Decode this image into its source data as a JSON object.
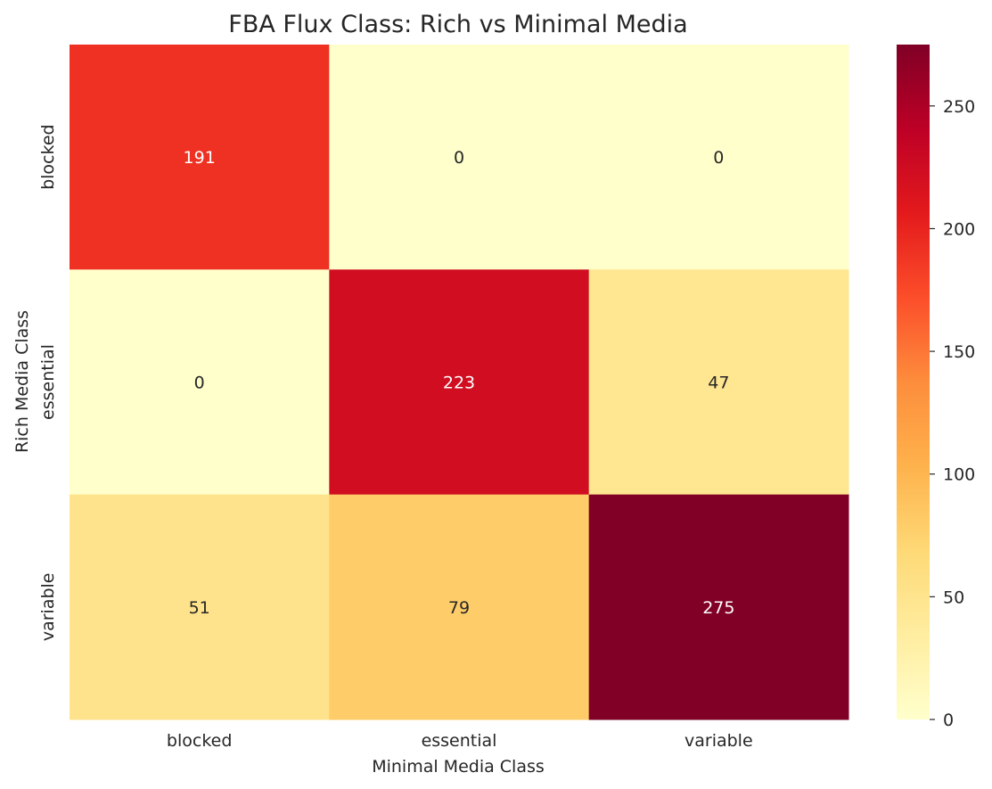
{
  "chart_data": {
    "type": "heatmap",
    "title": "FBA Flux Class: Rich vs Minimal Media",
    "xlabel": "Minimal Media Class",
    "ylabel": "Rich Media Class",
    "x_categories": [
      "blocked",
      "essential",
      "variable"
    ],
    "y_categories": [
      "blocked",
      "essential",
      "variable"
    ],
    "values": [
      [
        191,
        0,
        0
      ],
      [
        0,
        223,
        47
      ],
      [
        51,
        79,
        275
      ]
    ],
    "colormap": "YlOrRd",
    "color_range": [
      0,
      275
    ],
    "colorbar_ticks": [
      "0",
      "50",
      "100",
      "150",
      "200",
      "250"
    ],
    "annotations_shown": true,
    "grid": false,
    "colorbar_position": "right"
  }
}
